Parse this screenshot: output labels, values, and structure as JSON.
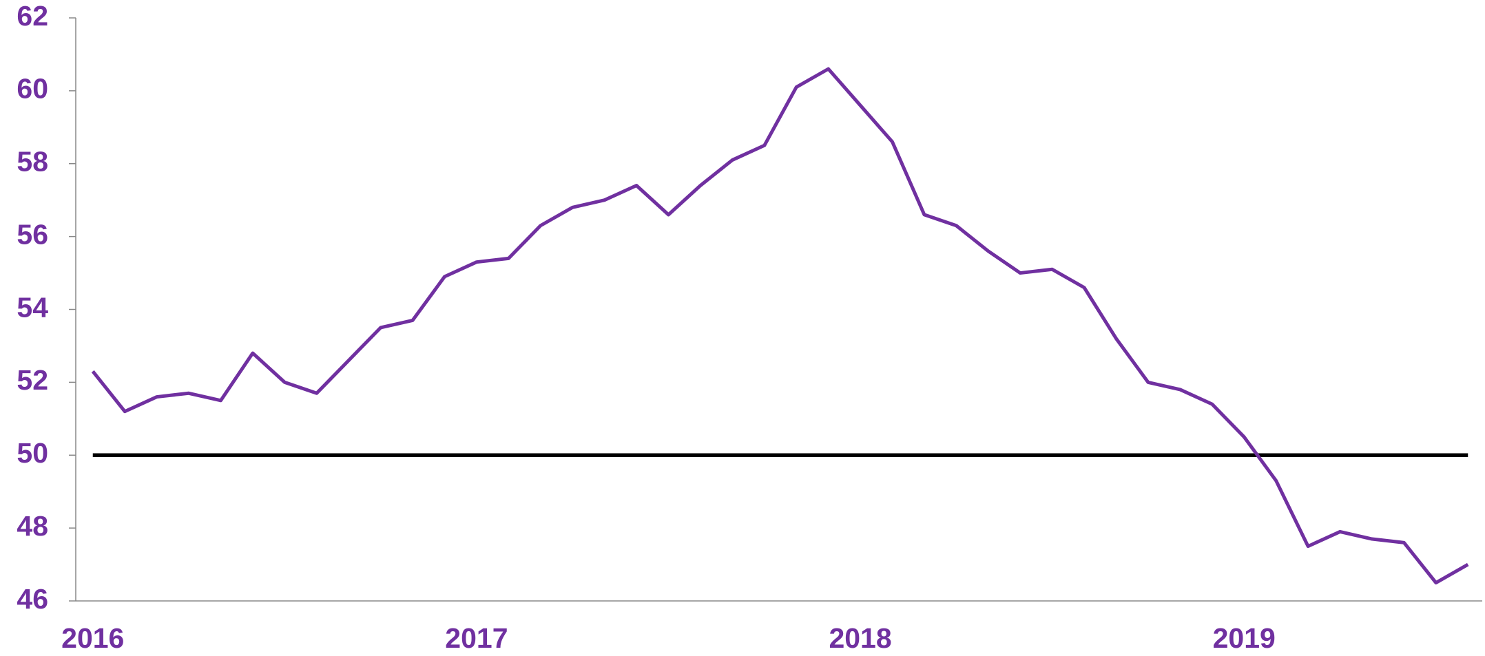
{
  "chart_data": {
    "type": "line",
    "categories": [
      "2016",
      null,
      null,
      null,
      null,
      null,
      null,
      null,
      null,
      null,
      null,
      null,
      "2017",
      null,
      null,
      null,
      null,
      null,
      null,
      null,
      null,
      null,
      null,
      null,
      "2018",
      null,
      null,
      null,
      null,
      null,
      null,
      null,
      null,
      null,
      null,
      null,
      "2019",
      null,
      null,
      null,
      null,
      null,
      null,
      null
    ],
    "series": [
      {
        "color": "#7030a0",
        "values": [
          52.3,
          51.2,
          51.6,
          51.7,
          51.5,
          52.8,
          52.0,
          51.7,
          52.6,
          53.5,
          53.7,
          54.9,
          55.3,
          55.4,
          56.3,
          56.8,
          57.0,
          57.4,
          56.6,
          57.4,
          58.1,
          58.5,
          60.1,
          60.6,
          59.6,
          58.6,
          56.6,
          56.3,
          55.6,
          55.0,
          55.1,
          54.6,
          53.2,
          52.0,
          51.8,
          51.4,
          50.5,
          49.3,
          47.5,
          47.9,
          47.7,
          47.6,
          46.5,
          47.0
        ]
      }
    ],
    "reference_line": {
      "value": 50,
      "color": "#000000"
    },
    "ylim": [
      46,
      62
    ],
    "yticks": [
      46,
      48,
      50,
      52,
      54,
      56,
      58,
      60,
      62
    ]
  }
}
